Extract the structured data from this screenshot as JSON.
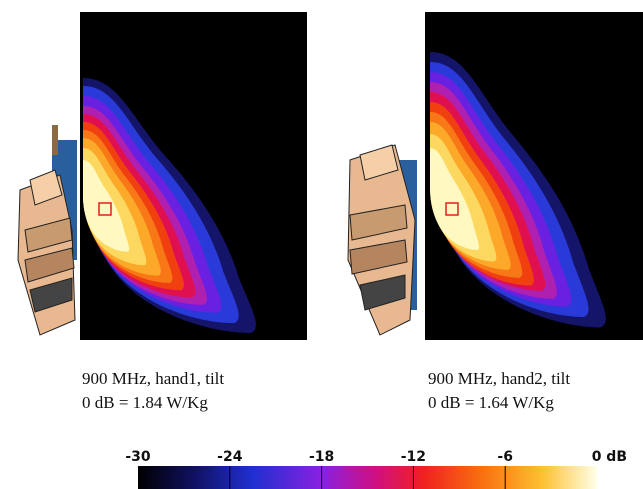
{
  "panels": [
    {
      "caption": "900 MHz, hand1, tilt",
      "reference": "0 dB = 1.84 W/Kg"
    },
    {
      "caption": "900 MHz, hand2, tilt",
      "reference": "0 dB = 1.64 W/Kg"
    }
  ],
  "colorbar": {
    "ticks": [
      -30,
      -24,
      -18,
      -12,
      -6,
      {
        "value": 0,
        "label": "0 dB"
      }
    ]
  }
}
